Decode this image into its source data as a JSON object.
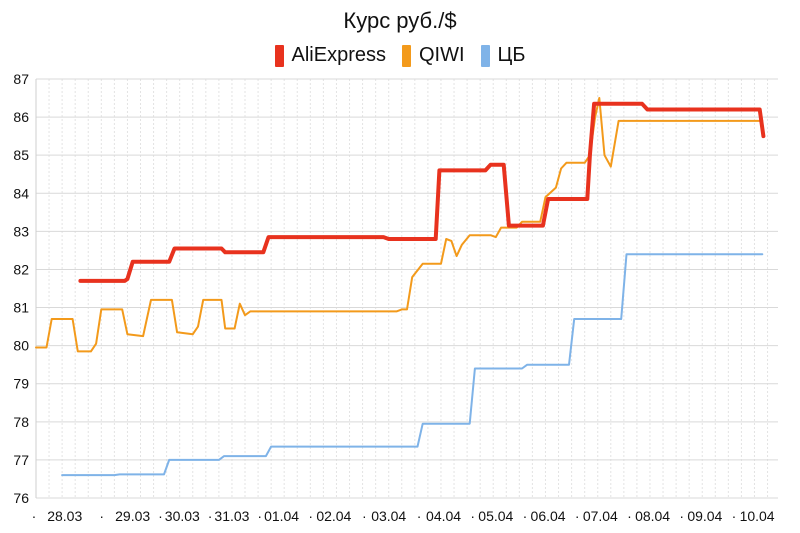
{
  "chart_data": {
    "type": "line",
    "title": "Курс руб./$",
    "xlabel": "",
    "ylabel": "",
    "ylim": [
      76,
      87
    ],
    "yticks": [
      76,
      77,
      78,
      79,
      80,
      81,
      82,
      83,
      84,
      85,
      86,
      87
    ],
    "xlim": [
      0,
      14.2
    ],
    "xtick_labels": [
      "28.03",
      "29.03",
      "30.03",
      "31.03",
      "01.04",
      "02.04",
      "03.04",
      "04.04",
      "05.04",
      "06.04",
      "07.04",
      "08.04",
      "09.04",
      "10.04"
    ],
    "xtick_positions": [
      0.55,
      1.85,
      2.8,
      3.75,
      4.7,
      5.7,
      6.75,
      7.8,
      8.8,
      9.8,
      10.8,
      11.8,
      12.8,
      13.8
    ],
    "grid": true,
    "legend_position": "top-center",
    "series": [
      {
        "name": "AliExpress",
        "color": "#e8321e",
        "width": 4,
        "points": [
          [
            0.85,
            81.7
          ],
          [
            1.7,
            81.7
          ],
          [
            1.75,
            81.75
          ],
          [
            1.85,
            82.2
          ],
          [
            2.55,
            82.2
          ],
          [
            2.65,
            82.55
          ],
          [
            3.55,
            82.55
          ],
          [
            3.62,
            82.45
          ],
          [
            4.35,
            82.45
          ],
          [
            4.45,
            82.85
          ],
          [
            6.65,
            82.85
          ],
          [
            6.75,
            82.8
          ],
          [
            7.65,
            82.8
          ],
          [
            7.72,
            84.6
          ],
          [
            8.6,
            84.6
          ],
          [
            8.7,
            84.75
          ],
          [
            8.95,
            84.75
          ],
          [
            9.05,
            83.15
          ],
          [
            9.7,
            83.15
          ],
          [
            9.8,
            83.85
          ],
          [
            10.55,
            83.85
          ],
          [
            10.6,
            85.0
          ],
          [
            10.68,
            86.35
          ],
          [
            11.6,
            86.35
          ],
          [
            11.7,
            86.2
          ],
          [
            13.85,
            86.2
          ],
          [
            13.92,
            85.5
          ]
        ]
      },
      {
        "name": "QIWI",
        "color": "#f39a1b",
        "width": 2,
        "points": [
          [
            0.0,
            79.95
          ],
          [
            0.2,
            79.95
          ],
          [
            0.3,
            80.7
          ],
          [
            0.7,
            80.7
          ],
          [
            0.8,
            79.85
          ],
          [
            1.05,
            79.85
          ],
          [
            1.15,
            80.05
          ],
          [
            1.25,
            80.95
          ],
          [
            1.65,
            80.95
          ],
          [
            1.75,
            80.3
          ],
          [
            2.05,
            80.25
          ],
          [
            2.2,
            81.2
          ],
          [
            2.6,
            81.2
          ],
          [
            2.7,
            80.35
          ],
          [
            3.0,
            80.3
          ],
          [
            3.1,
            80.5
          ],
          [
            3.2,
            81.2
          ],
          [
            3.55,
            81.2
          ],
          [
            3.62,
            80.45
          ],
          [
            3.8,
            80.45
          ],
          [
            3.9,
            81.1
          ],
          [
            4.0,
            80.8
          ],
          [
            4.1,
            80.9
          ],
          [
            6.9,
            80.9
          ],
          [
            7.0,
            80.95
          ],
          [
            7.1,
            80.95
          ],
          [
            7.2,
            81.8
          ],
          [
            7.4,
            82.15
          ],
          [
            7.75,
            82.15
          ],
          [
            7.85,
            82.8
          ],
          [
            7.95,
            82.75
          ],
          [
            8.05,
            82.35
          ],
          [
            8.15,
            82.65
          ],
          [
            8.3,
            82.9
          ],
          [
            8.7,
            82.9
          ],
          [
            8.8,
            82.85
          ],
          [
            8.9,
            83.1
          ],
          [
            9.2,
            83.1
          ],
          [
            9.3,
            83.25
          ],
          [
            9.65,
            83.25
          ],
          [
            9.75,
            83.9
          ],
          [
            9.95,
            84.15
          ],
          [
            10.05,
            84.65
          ],
          [
            10.15,
            84.8
          ],
          [
            10.5,
            84.8
          ],
          [
            10.6,
            85.0
          ],
          [
            10.7,
            86.0
          ],
          [
            10.78,
            86.5
          ],
          [
            10.88,
            85.0
          ],
          [
            11.0,
            84.7
          ],
          [
            11.15,
            85.9
          ],
          [
            13.9,
            85.9
          ]
        ]
      },
      {
        "name": "ЦБ",
        "color": "#7fb3e8",
        "width": 2,
        "points": [
          [
            0.5,
            76.6
          ],
          [
            1.5,
            76.6
          ],
          [
            1.6,
            76.62
          ],
          [
            2.45,
            76.62
          ],
          [
            2.55,
            77.0
          ],
          [
            3.5,
            77.0
          ],
          [
            3.6,
            77.1
          ],
          [
            4.4,
            77.1
          ],
          [
            4.5,
            77.35
          ],
          [
            7.3,
            77.35
          ],
          [
            7.4,
            77.95
          ],
          [
            8.3,
            77.95
          ],
          [
            8.4,
            79.4
          ],
          [
            9.3,
            79.4
          ],
          [
            9.4,
            79.5
          ],
          [
            10.2,
            79.5
          ],
          [
            10.3,
            80.7
          ],
          [
            11.2,
            80.7
          ],
          [
            11.3,
            82.4
          ],
          [
            13.9,
            82.4
          ]
        ]
      }
    ]
  }
}
